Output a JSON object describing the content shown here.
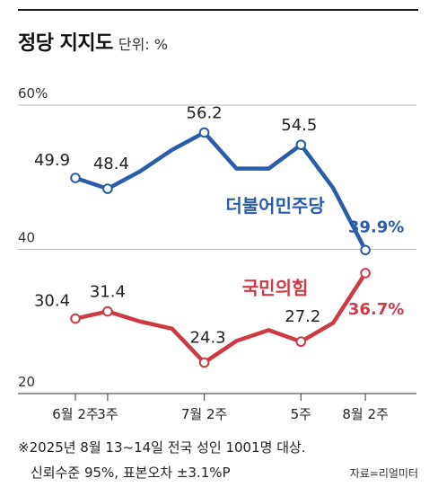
{
  "header": {
    "title": "정당 지지도",
    "unit": "단위: %"
  },
  "chart_data": {
    "type": "line",
    "title": "정당 지지도",
    "unit": "%",
    "ylim": [
      20,
      62
    ],
    "y_ticks": [
      {
        "value": 60,
        "label": "60%"
      },
      {
        "value": 40,
        "label": "40"
      },
      {
        "value": 20,
        "label": "20"
      }
    ],
    "x_labels": [
      "6월 2주",
      "3주",
      "7월 2주",
      "5주",
      "8월 2주"
    ],
    "x_label_positions": [
      0,
      1,
      4,
      7,
      9
    ],
    "grid": true,
    "series": [
      {
        "name": "더불어민주당",
        "color": "#2a5caa",
        "values": [
          49.9,
          48.4,
          50.8,
          53.8,
          56.2,
          51.2,
          51.2,
          54.5,
          48.5,
          39.9
        ],
        "labels": [
          {
            "index": 0,
            "text": "49.9"
          },
          {
            "index": 1,
            "text": "48.4"
          },
          {
            "index": 4,
            "text": "56.2"
          },
          {
            "index": 7,
            "text": "54.5"
          },
          {
            "index": 9,
            "text": "39.9%"
          }
        ]
      },
      {
        "name": "국민의힘",
        "color": "#cc3b44",
        "values": [
          30.4,
          31.4,
          30.0,
          29.0,
          24.3,
          27.3,
          28.8,
          27.2,
          29.8,
          36.7
        ],
        "labels": [
          {
            "index": 0,
            "text": "30.4"
          },
          {
            "index": 1,
            "text": "31.4"
          },
          {
            "index": 4,
            "text": "24.3"
          },
          {
            "index": 7,
            "text": "27.2"
          },
          {
            "index": 9,
            "text": "36.7%"
          }
        ]
      }
    ]
  },
  "footnote": {
    "line1": "※2025년 8월 13~14일 전국 성인 1001명 대상.",
    "line2": "신뢰수준 95%, 표본오차 ±3.1%P",
    "source": "자료=리얼미터"
  }
}
